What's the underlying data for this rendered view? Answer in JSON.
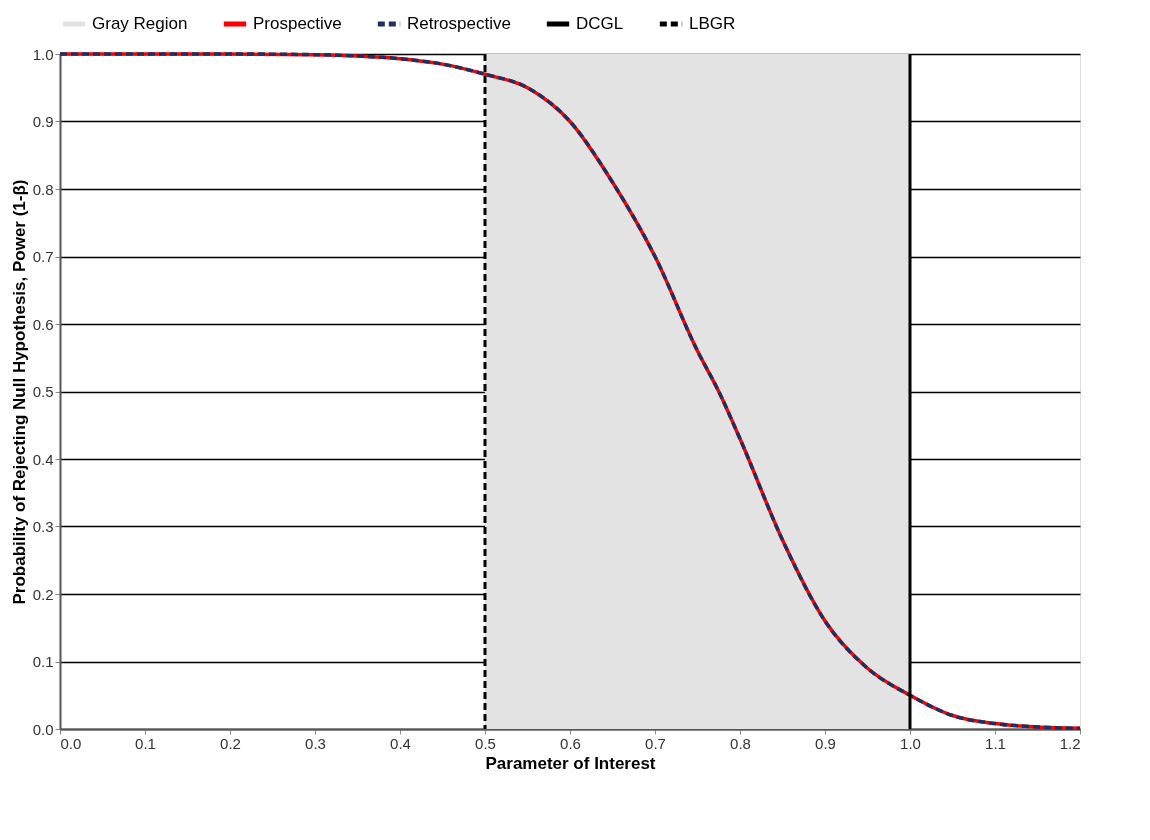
{
  "chart_data": {
    "type": "line",
    "xlabel": "Parameter of Interest",
    "ylabel": "Probability of Rejecting Null Hypothesis, Power  (1-β)",
    "x": [
      0,
      0.1,
      0.2,
      0.3,
      0.35,
      0.4,
      0.45,
      0.5,
      0.55,
      0.6,
      0.65,
      0.7,
      0.75,
      0.775,
      0.8,
      0.85,
      0.9,
      0.95,
      1.0,
      1.05,
      1.1,
      1.15,
      1.2
    ],
    "series": [
      {
        "name": "Prospective",
        "color": "#ff0000",
        "line_style": "solid",
        "values": [
          1,
          1,
          1,
          0.999,
          0.997,
          0.993,
          0.985,
          0.97,
          0.95,
          0.9,
          0.81,
          0.7,
          0.56,
          0.5,
          0.43,
          0.28,
          0.16,
          0.09,
          0.05,
          0.02,
          0.008,
          0.003,
          0.001
        ]
      },
      {
        "name": "Retrospective",
        "color": "#1f2f5f",
        "line_style": "dashed",
        "values": [
          1,
          1,
          1,
          0.999,
          0.997,
          0.993,
          0.985,
          0.97,
          0.95,
          0.9,
          0.81,
          0.7,
          0.56,
          0.5,
          0.43,
          0.28,
          0.16,
          0.09,
          0.05,
          0.02,
          0.008,
          0.003,
          0.001
        ]
      }
    ],
    "bands": [
      {
        "axis": "x",
        "from": 0.5,
        "to": 1.0,
        "label": "Gray Region",
        "color": "#e3e3e3"
      }
    ],
    "ref_lines": [
      {
        "axis": "x",
        "value": 1.0,
        "label": "DCGL",
        "color": "#000000",
        "line_style": "solid"
      },
      {
        "axis": "x",
        "value": 0.5,
        "label": "LBGR",
        "color": "#000000",
        "line_style": "dashed"
      }
    ],
    "xlim": [
      0,
      1.2
    ],
    "xticks": [
      {
        "value": 0,
        "label": "0.0"
      },
      0.1,
      0.2,
      0.3,
      0.4,
      0.5,
      0.6,
      0.7,
      0.8,
      0.9,
      {
        "value": 1.0,
        "label": "1.0"
      },
      1.1,
      1.2
    ],
    "ylim": [
      0,
      1.0
    ],
    "yticks": [
      {
        "value": 0,
        "label": "0.0"
      },
      0.1,
      0.2,
      0.3,
      0.4,
      0.5,
      0.6,
      0.7,
      0.8,
      0.9,
      {
        "value": 1.0,
        "label": "1.0"
      }
    ],
    "grid": "y",
    "legend": "top",
    "marker": "none"
  }
}
